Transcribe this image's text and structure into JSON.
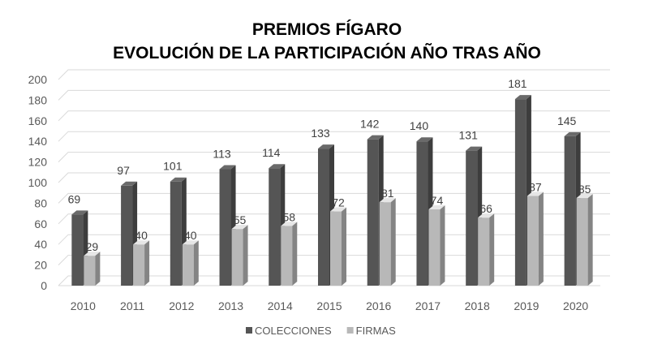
{
  "chart_data": {
    "type": "bar",
    "title": "PREMIOS FÍGARO",
    "subtitle": "EVOLUCIÓN DE LA PARTICIPACIÓN AÑO TRAS AÑO",
    "categories": [
      "2010",
      "2011",
      "2012",
      "2013",
      "2014",
      "2015",
      "2016",
      "2017",
      "2018",
      "2019",
      "2020"
    ],
    "series": [
      {
        "name": "COLECCIONES",
        "values": [
          69,
          97,
          101,
          113,
          114,
          133,
          142,
          140,
          131,
          181,
          145
        ],
        "color": "#555555"
      },
      {
        "name": "FIRMAS",
        "values": [
          29,
          40,
          40,
          55,
          58,
          72,
          81,
          74,
          66,
          87,
          85
        ],
        "color": "#b8b8b8"
      }
    ],
    "ylim": [
      0,
      200
    ],
    "yticks": [
      "0",
      "20",
      "40",
      "60",
      "80",
      "100",
      "120",
      "140",
      "160",
      "180",
      "200"
    ],
    "xlabel": "",
    "ylabel": "",
    "grid": true,
    "style": "3d-column",
    "legend": "bottom-center"
  }
}
